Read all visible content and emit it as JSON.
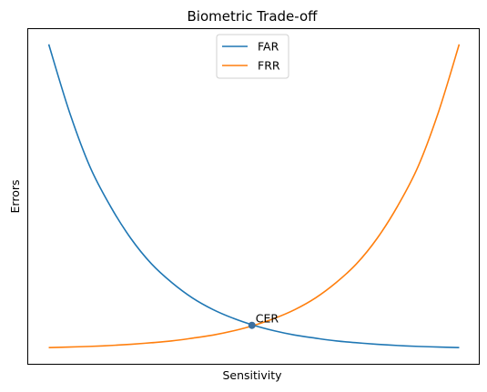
{
  "chart_data": {
    "type": "line",
    "title": "Biometric Trade-off",
    "xlabel": "Sensitivity",
    "ylabel": "Errors",
    "xlim": [
      -0.05,
      1.05
    ],
    "ylim": [
      -0.05,
      1.05
    ],
    "grid": false,
    "ticks": false,
    "legend": "upper center",
    "colors": {
      "FAR": "#1f77b4",
      "FRR": "#ff7f0e",
      "point": "#3b6fa0"
    },
    "series": [
      {
        "name": "FAR",
        "color": "#1f77b4",
        "x": [
          0,
          0.05,
          0.1,
          0.15,
          0.2,
          0.25,
          0.3,
          0.35,
          0.4,
          0.45,
          0.5,
          0.55,
          0.6,
          0.65,
          0.7,
          0.75,
          0.8,
          0.85,
          0.9,
          0.95,
          1
        ],
        "y": [
          1.0,
          0.78,
          0.6,
          0.47,
          0.364,
          0.281,
          0.219,
          0.169,
          0.131,
          0.102,
          0.079,
          0.061,
          0.047,
          0.037,
          0.028,
          0.022,
          0.017,
          0.013,
          0.01,
          0.008,
          0.006
        ]
      },
      {
        "name": "FRR",
        "color": "#ff7f0e",
        "x": [
          0,
          0.05,
          0.1,
          0.15,
          0.2,
          0.25,
          0.3,
          0.35,
          0.4,
          0.45,
          0.5,
          0.55,
          0.6,
          0.65,
          0.7,
          0.75,
          0.8,
          0.85,
          0.9,
          0.95,
          1
        ],
        "y": [
          0.006,
          0.008,
          0.01,
          0.013,
          0.017,
          0.022,
          0.028,
          0.037,
          0.047,
          0.061,
          0.079,
          0.102,
          0.131,
          0.169,
          0.219,
          0.281,
          0.364,
          0.47,
          0.6,
          0.78,
          1.0
        ]
      }
    ],
    "annotations": [
      {
        "text": "CER",
        "x": 0.495,
        "y": 0.079,
        "marker": true
      }
    ]
  }
}
